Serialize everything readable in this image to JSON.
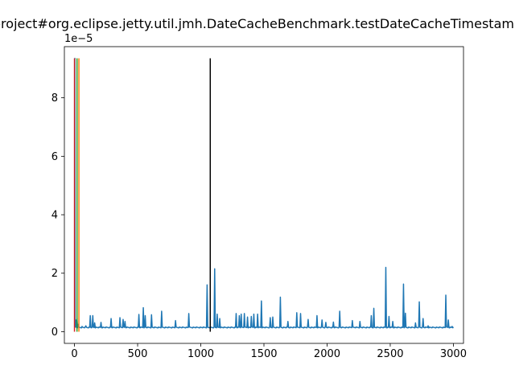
{
  "chart_data": {
    "type": "line",
    "title": "project#org.eclipse.jetty.util.jmh.DateCacheBenchmark.testDateCacheTimestamp",
    "xlabel": "",
    "ylabel": "",
    "y_offset_label": "1e−5",
    "xlim": [
      -80,
      3080
    ],
    "ylim": [
      -4e-06,
      9.75e-05
    ],
    "x_ticks": [
      0,
      500,
      1000,
      1500,
      2000,
      2500,
      3000
    ],
    "x_tick_labels": [
      "0",
      "500",
      "1000",
      "1500",
      "2000",
      "2500",
      "3000"
    ],
    "y_ticks": [
      0,
      2e-05,
      4e-05,
      6e-05,
      8e-05
    ],
    "y_tick_labels": [
      "0",
      "2",
      "4",
      "6",
      "8"
    ],
    "grid": false,
    "series": [
      {
        "color": "#1f77b4",
        "baseline": 1.3e-06,
        "x_max": 3000,
        "spikes": [
          [
            0,
            9.35e-05
          ],
          [
            3,
            9.35e-05
          ],
          [
            10,
            4e-06
          ],
          [
            20,
            4.5e-06
          ],
          [
            30,
            2.5e-06
          ],
          [
            60,
            1.8e-06
          ],
          [
            90,
            2e-06
          ],
          [
            125,
            5.5e-06
          ],
          [
            145,
            5.5e-06
          ],
          [
            160,
            3e-06
          ],
          [
            210,
            3.2e-06
          ],
          [
            290,
            4.5e-06
          ],
          [
            360,
            4.8e-06
          ],
          [
            385,
            4.2e-06
          ],
          [
            400,
            3.5e-06
          ],
          [
            510,
            5.9e-06
          ],
          [
            545,
            8.2e-06
          ],
          [
            560,
            5.5e-06
          ],
          [
            610,
            5.8e-06
          ],
          [
            690,
            7e-06
          ],
          [
            800,
            3.8e-06
          ],
          [
            905,
            6.2e-06
          ],
          [
            1050,
            1.6e-05
          ],
          [
            1110,
            2.15e-05
          ],
          [
            1130,
            6e-06
          ],
          [
            1150,
            4.5e-06
          ],
          [
            1280,
            6.2e-06
          ],
          [
            1305,
            5.5e-06
          ],
          [
            1320,
            6e-06
          ],
          [
            1345,
            6.2e-06
          ],
          [
            1370,
            5e-06
          ],
          [
            1400,
            5.2e-06
          ],
          [
            1420,
            6e-06
          ],
          [
            1450,
            6e-06
          ],
          [
            1480,
            1.05e-05
          ],
          [
            1550,
            4.8e-06
          ],
          [
            1570,
            5e-06
          ],
          [
            1630,
            1.18e-05
          ],
          [
            1690,
            3.5e-06
          ],
          [
            1760,
            6.5e-06
          ],
          [
            1790,
            6.2e-06
          ],
          [
            1850,
            4.2e-06
          ],
          [
            1920,
            5.5e-06
          ],
          [
            1960,
            4e-06
          ],
          [
            1990,
            3.2e-06
          ],
          [
            2050,
            3.3e-06
          ],
          [
            2100,
            7e-06
          ],
          [
            2200,
            3.8e-06
          ],
          [
            2260,
            3.5e-06
          ],
          [
            2350,
            5.5e-06
          ],
          [
            2370,
            8e-06
          ],
          [
            2465,
            2.2e-05
          ],
          [
            2490,
            5.2e-06
          ],
          [
            2520,
            3.5e-06
          ],
          [
            2605,
            1.63e-05
          ],
          [
            2620,
            6.3e-06
          ],
          [
            2700,
            3e-06
          ],
          [
            2730,
            1.02e-05
          ],
          [
            2760,
            4.5e-06
          ],
          [
            2800,
            2e-06
          ],
          [
            2940,
            1.25e-05
          ],
          [
            2960,
            4e-06
          ],
          [
            2990,
            1.8e-06
          ]
        ]
      }
    ],
    "vertical_lines": [
      {
        "x": 0,
        "y_top": 9.35e-05,
        "color": "#d62728"
      },
      {
        "x": 20,
        "y_top": 9.35e-05,
        "color": "#2ca02c"
      },
      {
        "x": 35,
        "y_top": 9.35e-05,
        "color": "#ff7f0e"
      },
      {
        "x": 1075,
        "y_top": 9.35e-05,
        "color": "#000000"
      }
    ]
  }
}
